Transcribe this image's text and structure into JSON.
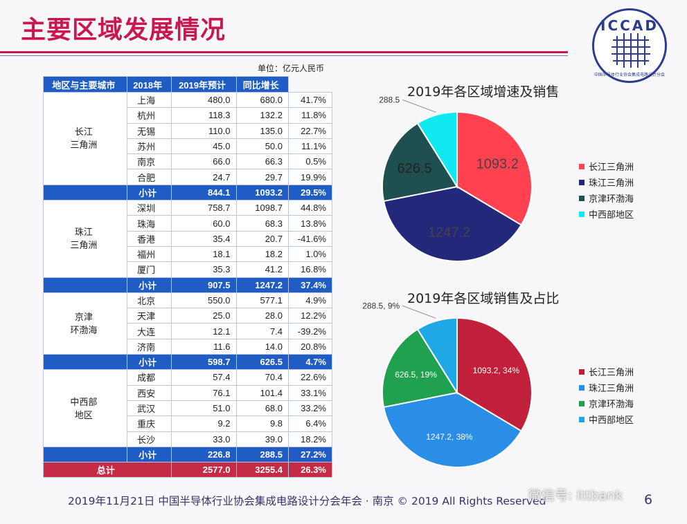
{
  "page_title": "主要区域发展情况",
  "logo_text": "ICCAD",
  "logo_subtext": "中国半导体行业协会集成电路设计分会",
  "unit_label": "单位：亿元人民币",
  "table": {
    "headers": [
      "地区与主要城市",
      "2018年",
      "2019年预计",
      "同比增长"
    ],
    "groups": [
      {
        "region": "长江\n三角洲",
        "rows": [
          [
            "上海",
            "480.0",
            "680.0",
            "41.7%"
          ],
          [
            "杭州",
            "118.3",
            "132.2",
            "11.8%"
          ],
          [
            "无锡",
            "110.0",
            "135.0",
            "22.7%"
          ],
          [
            "苏州",
            "45.0",
            "50.0",
            "11.1%"
          ],
          [
            "南京",
            "66.0",
            "66.3",
            "0.5%"
          ],
          [
            "合肥",
            "24.7",
            "29.7",
            "19.9%"
          ]
        ],
        "subtotal": [
          "小计",
          "844.1",
          "1093.2",
          "29.5%"
        ]
      },
      {
        "region": "珠江\n三角洲",
        "rows": [
          [
            "深圳",
            "758.7",
            "1098.7",
            "44.8%"
          ],
          [
            "珠海",
            "60.0",
            "68.3",
            "13.8%"
          ],
          [
            "香港",
            "35.4",
            "20.7",
            "-41.6%"
          ],
          [
            "福州",
            "18.1",
            "18.2",
            "1.0%"
          ],
          [
            "厦门",
            "35.3",
            "41.2",
            "16.8%"
          ]
        ],
        "subtotal": [
          "小计",
          "907.5",
          "1247.2",
          "37.4%"
        ]
      },
      {
        "region": "京津\n环渤海",
        "rows": [
          [
            "北京",
            "550.0",
            "577.1",
            "4.9%"
          ],
          [
            "天津",
            "25.0",
            "28.0",
            "12.2%"
          ],
          [
            "大连",
            "12.1",
            "7.4",
            "-39.2%"
          ],
          [
            "济南",
            "11.6",
            "14.0",
            "20.8%"
          ]
        ],
        "subtotal": [
          "小计",
          "598.7",
          "626.5",
          "4.7%"
        ]
      },
      {
        "region": "中西部\n地区",
        "rows": [
          [
            "成都",
            "57.4",
            "70.4",
            "22.6%"
          ],
          [
            "西安",
            "76.1",
            "101.4",
            "33.1%"
          ],
          [
            "武汉",
            "51.0",
            "68.0",
            "33.2%"
          ],
          [
            "重庆",
            "9.2",
            "9.8",
            "6.4%"
          ],
          [
            "长沙",
            "33.0",
            "39.0",
            "18.2%"
          ]
        ],
        "subtotal": [
          "小计",
          "226.8",
          "288.5",
          "27.2%"
        ]
      }
    ],
    "total": [
      "总计",
      "2577.0",
      "3255.4",
      "26.3%"
    ]
  },
  "colors": {
    "header_blue": "#1f5cc4",
    "total_red": "#c52b45",
    "chart1": [
      "#ff4150",
      "#24287a",
      "#1f4f50",
      "#12e8f0"
    ],
    "chart2": [
      "#c1203a",
      "#2a8de6",
      "#1fa150",
      "#1fa7e6"
    ]
  },
  "chart_data": [
    {
      "type": "pie",
      "title": "2019年各区域增速及销售",
      "labels": [
        "长江三角洲",
        "珠江三角洲",
        "京津环渤海",
        "中西部地区"
      ],
      "values": [
        1093.2,
        1247.2,
        626.5,
        288.5
      ],
      "data_labels": [
        "1093.2",
        "1247.2",
        "626.5",
        "288.5"
      ],
      "legend_position": "right"
    },
    {
      "type": "pie",
      "title": "2019年各区域销售及占比",
      "labels": [
        "长江三角洲",
        "珠江三角洲",
        "京津环渤海",
        "中西部地区"
      ],
      "values": [
        1093.2,
        1247.2,
        626.5,
        288.5
      ],
      "data_labels": [
        "1093.2, 34%",
        "1247.2, 38%",
        "626.5, 19%",
        "288.5, 9%"
      ],
      "legend_position": "right"
    }
  ],
  "footer": "2019年11月21日 中国半导体行业协会集成电路设计分会年会 · 南京 © 2019 All Rights Reserved",
  "watermark": "微信号: ittbank",
  "page_number": "6"
}
